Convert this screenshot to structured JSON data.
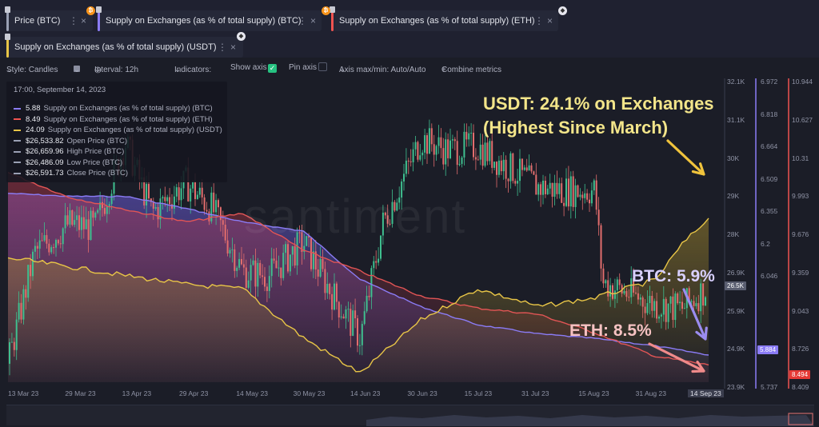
{
  "tabs": [
    {
      "label": "Price (BTC)",
      "color": "#9aa0b4",
      "badge": "₿",
      "badge_color": "#f7931a"
    },
    {
      "label": "Supply on Exchanges (as % of total supply) (BTC)",
      "color": "#8b7cf6",
      "badge": "",
      "badge_color": ""
    },
    {
      "label": "Supply on Exchanges (as % of total supply) (ETH)",
      "color": "#ef5350",
      "badge": "₿",
      "badge_color": "#f7931a"
    },
    {
      "label": "Supply on Exchanges (as % of total supply) (USDT)",
      "color": "#e8c547",
      "badge": "",
      "badge_color": ""
    }
  ],
  "toolbar": {
    "style": "Style: Candles",
    "interval": "Interval: 12h",
    "indicators": "Indicators:",
    "show_axis": "Show axis",
    "pin_axis": "Pin axis",
    "axis_maxmin": "Axis max/min: Auto/Auto",
    "combine": "Combine metrics"
  },
  "tooltip": {
    "date": "17:00, September 14, 2023",
    "rows": [
      {
        "value": "5.88",
        "label": "Supply on Exchanges (as % of total supply) (BTC)",
        "color": "#8b7cf6"
      },
      {
        "value": "8.49",
        "label": "Supply on Exchanges (as % of total supply) (ETH)",
        "color": "#ef5350"
      },
      {
        "value": "24.09",
        "label": "Supply on Exchanges (as % of total supply) (USDT)",
        "color": "#e8c547"
      },
      {
        "value": "$26,533.82",
        "label": "Open Price (BTC)",
        "color": "#9aa0b4"
      },
      {
        "value": "$26,659.96",
        "label": "High Price (BTC)",
        "color": "#9aa0b4"
      },
      {
        "value": "$26,486.09",
        "label": "Low Price (BTC)",
        "color": "#9aa0b4"
      },
      {
        "value": "$26,591.73",
        "label": "Close Price (BTC)",
        "color": "#9aa0b4"
      }
    ]
  },
  "watermark": "santiment",
  "annotations": {
    "usdt_line1": "USDT: 24.1% on Exchanges",
    "usdt_line2": "(Highest Since March)",
    "btc": "BTC: 5.9%",
    "eth": "ETH: 8.5%"
  },
  "chart_data": {
    "type": "line",
    "x_ticks": [
      "13 Mar 23",
      "29 Mar 23",
      "13 Apr 23",
      "29 Apr 23",
      "14 May 23",
      "30 May 23",
      "14 Jun 23",
      "30 Jun 23",
      "15 Jul 23",
      "31 Jul 23",
      "15 Aug 23",
      "31 Aug 23",
      "14 Sep 23"
    ],
    "price_axis": {
      "ticks": [
        "32.1K",
        "31.1K",
        "30K",
        "29K",
        "28K",
        "26.9K",
        "25.9K",
        "24.9K",
        "23.9K"
      ],
      "current": "26.5K",
      "range": [
        23900,
        32100
      ]
    },
    "btc_axis": {
      "ticks": [
        "6.972",
        "6.818",
        "6.664",
        "6.509",
        "6.355",
        "6.2",
        "6.046",
        "5.737"
      ],
      "current": "5.884",
      "range": [
        5.737,
        6.972
      ]
    },
    "eth_axis": {
      "ticks": [
        "10.944",
        "10.627",
        "10.31",
        "9.993",
        "9.676",
        "9.359",
        "9.043",
        "8.726",
        "8.409"
      ],
      "current": "8.494",
      "range": [
        8.409,
        10.944
      ]
    },
    "series": [
      {
        "name": "Price (BTC)",
        "axis": "price",
        "x": [
          "2023-03-13",
          "2023-03-20",
          "2023-03-29",
          "2023-04-05",
          "2023-04-13",
          "2023-04-20",
          "2023-04-29",
          "2023-05-06",
          "2023-05-14",
          "2023-05-21",
          "2023-05-30",
          "2023-06-06",
          "2023-06-14",
          "2023-06-20",
          "2023-06-30",
          "2023-07-07",
          "2023-07-15",
          "2023-07-22",
          "2023-07-31",
          "2023-08-07",
          "2023-08-15",
          "2023-08-17",
          "2023-08-24",
          "2023-08-31",
          "2023-09-07",
          "2023-09-14"
        ],
        "y": [
          24400,
          27400,
          28200,
          28100,
          30400,
          28500,
          29300,
          28600,
          26900,
          26800,
          27700,
          26400,
          25100,
          28200,
          30500,
          30200,
          30300,
          29800,
          29200,
          29100,
          29100,
          26600,
          26300,
          26000,
          25900,
          26500
        ]
      },
      {
        "name": "Supply on Exchanges (as % of total supply) (BTC)",
        "axis": "btc",
        "x": [
          "2023-03-13",
          "2023-03-29",
          "2023-04-13",
          "2023-04-29",
          "2023-05-14",
          "2023-05-30",
          "2023-06-14",
          "2023-06-30",
          "2023-07-15",
          "2023-07-31",
          "2023-08-15",
          "2023-08-31",
          "2023-09-14"
        ],
        "y": [
          6.95,
          6.93,
          6.93,
          6.85,
          6.76,
          6.7,
          6.38,
          6.2,
          6.08,
          6.02,
          5.99,
          5.94,
          5.88
        ]
      },
      {
        "name": "Supply on Exchanges (as % of total supply) (ETH)",
        "axis": "eth",
        "x": [
          "2023-03-13",
          "2023-03-29",
          "2023-04-13",
          "2023-04-29",
          "2023-05-14",
          "2023-05-30",
          "2023-06-14",
          "2023-06-30",
          "2023-07-15",
          "2023-07-31",
          "2023-08-15",
          "2023-08-31",
          "2023-09-14"
        ],
        "y": [
          10.05,
          9.85,
          9.75,
          9.65,
          9.72,
          9.42,
          9.25,
          9.05,
          8.95,
          8.9,
          8.75,
          8.56,
          8.49
        ]
      },
      {
        "name": "Supply on Exchanges (as % of total supply) (USDT)",
        "axis": "usdt",
        "x": [
          "2023-03-13",
          "2023-03-29",
          "2023-04-13",
          "2023-04-29",
          "2023-05-14",
          "2023-05-30",
          "2023-06-14",
          "2023-06-30",
          "2023-07-15",
          "2023-07-31",
          "2023-08-15",
          "2023-08-31",
          "2023-09-07",
          "2023-09-14"
        ],
        "y": [
          23.2,
          23.0,
          22.8,
          22.6,
          22.5,
          21.4,
          20.6,
          21.8,
          22.5,
          22.1,
          22.3,
          22.7,
          23.5,
          24.09
        ]
      }
    ],
    "grid": false,
    "legend": "top-left"
  }
}
